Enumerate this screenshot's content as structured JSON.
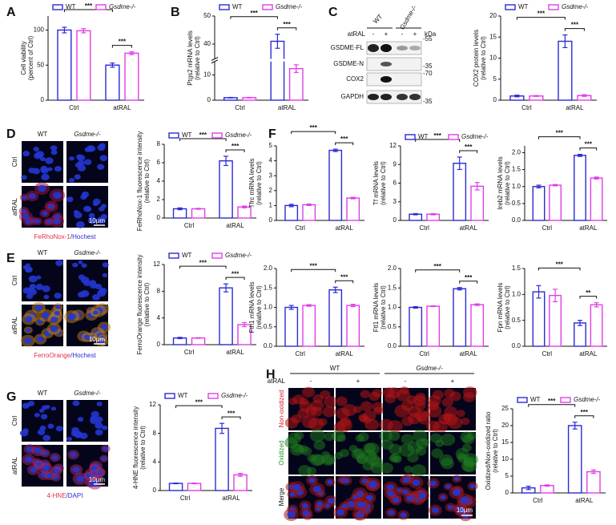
{
  "figure": {
    "panels": [
      "A",
      "B",
      "C",
      "D",
      "E",
      "F",
      "G",
      "H"
    ],
    "blot": {
      "genotypes": [
        "WT",
        "Gsdme-/-"
      ],
      "treatment": "atRAL",
      "signs": [
        "-",
        "+",
        "-",
        "+"
      ],
      "unit": "kDa",
      "bands": [
        "GSDME-FL",
        "GSDME-N",
        "COX2",
        "GAPDH"
      ],
      "markers": [
        "-55",
        "-35",
        "-70",
        "-35"
      ]
    },
    "micrographs": [
      {
        "columns": [
          "WT",
          "Gsdme-/-"
        ],
        "rows": [
          "Ctrl",
          "atRAL"
        ],
        "scale": "10μm",
        "stain": [
          "FeRhoNox-1",
          "/Hochest"
        ]
      },
      {
        "columns": [
          "WT",
          "Gsdme-/-"
        ],
        "rows": [
          "Ctrl",
          "atRAL"
        ],
        "scale": "10μm",
        "stain": [
          "FerroOrange",
          "/Hochest"
        ]
      },
      {
        "columns": [
          "WT",
          "Gsdme-/-"
        ],
        "rows": [
          "Ctrl",
          "atRAL"
        ],
        "scale": "10μm",
        "stain": [
          "4-HNE",
          "/DAPI"
        ]
      }
    ],
    "imaging_H": {
      "groups": [
        "WT",
        "Gsdme-/-"
      ],
      "treatment": "atRAL",
      "signs": [
        "-",
        "+",
        "-",
        "+"
      ],
      "rows": [
        "Non-oxidized",
        "Oxidized",
        "Merge"
      ],
      "scale": "10μm"
    }
  },
  "chart_data": [
    {
      "type": "bar",
      "ylabel": [
        "Cell viability",
        "(percent of Ctrl)"
      ],
      "categories": [
        "Ctrl",
        "atRAL"
      ],
      "series": [
        {
          "name": "WT",
          "color": "#2a2ad6",
          "values": [
            100,
            50
          ],
          "errors": [
            4,
            3
          ]
        },
        {
          "name": "Gsdme-/-",
          "color": "#e03ee6",
          "values": [
            99,
            67
          ],
          "errors": [
            3,
            2
          ]
        }
      ],
      "ylim": [
        0,
        120
      ],
      "yticks": [
        0,
        50,
        100
      ],
      "annotations": [
        "***",
        "***"
      ],
      "legend": true
    },
    {
      "type": "bar",
      "ylabel": [
        "Ptgs2 mRNA levels",
        "(relative to Ctrl)"
      ],
      "categories": [
        "Ctrl",
        "atRAL"
      ],
      "series": [
        {
          "name": "WT",
          "color": "#2a2ad6",
          "values": [
            1,
            41
          ],
          "errors": [
            0.1,
            2.5
          ]
        },
        {
          "name": "Gsdme-/-",
          "color": "#e03ee6",
          "values": [
            1,
            12.5
          ],
          "errors": [
            0.1,
            1.5
          ]
        }
      ],
      "ylim": [
        0,
        50
      ],
      "yticks": [
        0,
        10,
        40,
        50
      ],
      "ybreak": [
        15,
        35
      ],
      "annotations": [
        "***",
        "***"
      ],
      "legend": true
    },
    {
      "type": "bar",
      "ylabel": [
        "COX2 protein levels",
        "(relative to Ctrl)"
      ],
      "categories": [
        "Ctrl",
        "atRAL"
      ],
      "series": [
        {
          "name": "WT",
          "color": "#2a2ad6",
          "values": [
            1,
            14
          ],
          "errors": [
            0.2,
            1.5
          ]
        },
        {
          "name": "Gsdme-/-",
          "color": "#e03ee6",
          "values": [
            1,
            1.1
          ],
          "errors": [
            0.1,
            0.2
          ]
        }
      ],
      "ylim": [
        0,
        20
      ],
      "yticks": [
        0,
        5,
        10,
        15,
        20
      ],
      "annotations": [
        "***",
        "***"
      ],
      "legend": true
    },
    {
      "type": "bar",
      "ylabel": [
        "FeRhoNox-1 fluorescence intensity",
        "(relative to Ctrl)"
      ],
      "categories": [
        "Ctrl",
        "atRAL"
      ],
      "series": [
        {
          "name": "WT",
          "color": "#2a2ad6",
          "values": [
            1,
            6.2
          ],
          "errors": [
            0.1,
            0.5
          ]
        },
        {
          "name": "Gsdme-/-",
          "color": "#e03ee6",
          "values": [
            1,
            1.2
          ],
          "errors": [
            0.05,
            0.1
          ]
        }
      ],
      "ylim": [
        0,
        8
      ],
      "yticks": [
        0,
        2,
        4,
        6,
        8
      ],
      "annotations": [
        "***",
        "***"
      ],
      "legend": true
    },
    {
      "type": "bar",
      "ylabel": [
        "FerroOrange fluorescence intensity",
        "(relative to Ctrl)"
      ],
      "categories": [
        "Ctrl",
        "atRAL"
      ],
      "series": [
        {
          "name": "WT",
          "color": "#2a2ad6",
          "values": [
            1,
            8.5
          ],
          "errors": [
            0.1,
            0.6
          ]
        },
        {
          "name": "Gsdme-/-",
          "color": "#e03ee6",
          "values": [
            1,
            3
          ],
          "errors": [
            0.05,
            0.3
          ]
        }
      ],
      "ylim": [
        0,
        12
      ],
      "yticks": [
        0,
        4,
        8,
        12
      ],
      "annotations": [
        "***",
        "***"
      ],
      "legend": true
    },
    {
      "type": "bar",
      "ylabel": [
        "Tfrc mRNA levels",
        "(relative to Ctrl)"
      ],
      "categories": [
        "Ctrl",
        "atRAL"
      ],
      "series": [
        {
          "name": "WT",
          "color": "#2a2ad6",
          "values": [
            1,
            4.7
          ],
          "errors": [
            0.08,
            0.08
          ]
        },
        {
          "name": "Gsdme-/-",
          "color": "#e03ee6",
          "values": [
            1.05,
            1.5
          ],
          "errors": [
            0.05,
            0.05
          ]
        }
      ],
      "ylim": [
        0,
        5
      ],
      "yticks": [
        0,
        1,
        2,
        3,
        4,
        5
      ],
      "annotations": [
        "***",
        "***"
      ],
      "legend": false
    },
    {
      "type": "bar",
      "ylabel": [
        "Tf mRNA levels",
        "(relative to Ctrl)"
      ],
      "categories": [
        "Ctrl",
        "atRAL"
      ],
      "series": [
        {
          "name": "WT",
          "color": "#2a2ad6",
          "values": [
            1,
            9.2
          ],
          "errors": [
            0.1,
            1
          ]
        },
        {
          "name": "Gsdme-/-",
          "color": "#e03ee6",
          "values": [
            1,
            5.5
          ],
          "errors": [
            0.1,
            0.6
          ]
        }
      ],
      "ylim": [
        0,
        12
      ],
      "yticks": [
        0,
        3,
        6,
        9,
        12
      ],
      "annotations": [
        "***",
        "***"
      ],
      "legend": true
    },
    {
      "type": "bar",
      "ylabel": [
        "Ireb2 mRNA levels",
        "(relative to Ctrl)"
      ],
      "categories": [
        "Ctrl",
        "atRAL"
      ],
      "series": [
        {
          "name": "WT",
          "color": "#2a2ad6",
          "values": [
            1,
            1.92
          ],
          "errors": [
            0.04,
            0.03
          ]
        },
        {
          "name": "Gsdme-/-",
          "color": "#e03ee6",
          "values": [
            1.04,
            1.25
          ],
          "errors": [
            0.02,
            0.03
          ]
        }
      ],
      "ylim": [
        0,
        2.2
      ],
      "yticks": [
        {
          "value": 0,
          "label": "0.0"
        },
        {
          "value": 0.5,
          "label": "0.5"
        },
        {
          "value": 1,
          "label": "1.0"
        },
        {
          "value": 1.5,
          "label": "1.5"
        },
        {
          "value": 2,
          "label": "2.0"
        }
      ],
      "annotations": [
        "***",
        "***"
      ],
      "legend": false
    },
    {
      "type": "bar",
      "ylabel": [
        "Fth1 mRNA levels",
        "(relative to Ctrl)"
      ],
      "categories": [
        "Ctrl",
        "atRAL"
      ],
      "series": [
        {
          "name": "WT",
          "color": "#2a2ad6",
          "values": [
            1,
            1.45
          ],
          "errors": [
            0.05,
            0.07
          ]
        },
        {
          "name": "Gsdme-/-",
          "color": "#e03ee6",
          "values": [
            1.05,
            1.05
          ],
          "errors": [
            0.02,
            0.03
          ]
        }
      ],
      "ylim": [
        0,
        2
      ],
      "yticks": [
        {
          "value": 0,
          "label": "0.0"
        },
        {
          "value": 0.5,
          "label": "0.5"
        },
        {
          "value": 1,
          "label": "1.0"
        },
        {
          "value": 1.5,
          "label": "1.5"
        },
        {
          "value": 2,
          "label": "2.0"
        }
      ],
      "annotations": [
        "***",
        "***"
      ],
      "legend": false
    },
    {
      "type": "bar",
      "ylabel": [
        "Ftl1 mRNA levels",
        "(relative to Ctrl)"
      ],
      "categories": [
        "Ctrl",
        "atRAL"
      ],
      "series": [
        {
          "name": "WT",
          "color": "#2a2ad6",
          "values": [
            1,
            1.48
          ],
          "errors": [
            0.02,
            0.03
          ]
        },
        {
          "name": "Gsdme-/-",
          "color": "#e03ee6",
          "values": [
            1.03,
            1.07
          ],
          "errors": [
            0.01,
            0.02
          ]
        }
      ],
      "ylim": [
        0,
        2
      ],
      "yticks": [
        {
          "value": 0,
          "label": "0.0"
        },
        {
          "value": 0.5,
          "label": "0.5"
        },
        {
          "value": 1,
          "label": "1.0"
        },
        {
          "value": 1.5,
          "label": "1.5"
        },
        {
          "value": 2,
          "label": "2.0"
        }
      ],
      "annotations": [
        "***",
        "***"
      ],
      "legend": false
    },
    {
      "type": "bar",
      "ylabel": [
        "Fpn mRNA levels",
        "(relative to Ctrl)"
      ],
      "categories": [
        "Ctrl",
        "atRAL"
      ],
      "series": [
        {
          "name": "WT",
          "color": "#2a2ad6",
          "values": [
            1.05,
            0.45
          ],
          "errors": [
            0.12,
            0.05
          ]
        },
        {
          "name": "Gsdme-/-",
          "color": "#e03ee6",
          "values": [
            0.98,
            0.8
          ],
          "errors": [
            0.12,
            0.04
          ]
        }
      ],
      "ylim": [
        0,
        1.5
      ],
      "yticks": [
        {
          "value": 0,
          "label": "0.0"
        },
        {
          "value": 0.5,
          "label": "0.5"
        },
        {
          "value": 1,
          "label": "1.0"
        },
        {
          "value": 1.5,
          "label": "1.5"
        }
      ],
      "annotations": [
        "***",
        "**"
      ],
      "legend": false
    },
    {
      "type": "bar",
      "ylabel": [
        "4-HNE fluorescence intensity",
        "(relative to Ctrl)"
      ],
      "categories": [
        "Ctrl",
        "atRAL"
      ],
      "series": [
        {
          "name": "WT",
          "color": "#2a2ad6",
          "values": [
            1,
            8.7
          ],
          "errors": [
            0.05,
            0.7
          ]
        },
        {
          "name": "Gsdme-/-",
          "color": "#e03ee6",
          "values": [
            1,
            2.2
          ],
          "errors": [
            0.05,
            0.2
          ]
        }
      ],
      "ylim": [
        0,
        12
      ],
      "yticks": [
        0,
        4,
        8,
        12
      ],
      "annotations": [
        "***",
        "***"
      ],
      "legend": true
    },
    {
      "type": "bar",
      "ylabel": [
        "Oxidized/Non-oxidized ratio",
        "(relative to Ctrl)"
      ],
      "categories": [
        "Ctrl",
        "atRAL"
      ],
      "series": [
        {
          "name": "WT",
          "color": "#2a2ad6",
          "values": [
            1.5,
            20
          ],
          "errors": [
            0.5,
            1
          ]
        },
        {
          "name": "Gsdme-/-",
          "color": "#e03ee6",
          "values": [
            2.2,
            6.3
          ],
          "errors": [
            0.2,
            0.5
          ]
        }
      ],
      "ylim": [
        0,
        25
      ],
      "yticks": [
        0,
        5,
        10,
        15,
        20,
        25
      ],
      "annotations": [
        "***",
        "***"
      ],
      "legend": true
    }
  ]
}
